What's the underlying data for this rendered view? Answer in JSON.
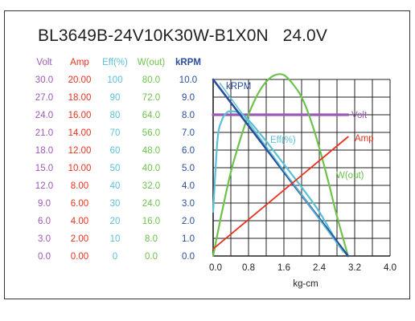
{
  "title": "BL3649B-24V10K30W-B1X0N   24.0V",
  "colors": {
    "volt": "#9b59b6",
    "amp": "#e8321e",
    "eff": "#5bc0d6",
    "wout": "#6cc24a",
    "krpm": "#2a4d9c",
    "grid": "#222222"
  },
  "chart_data": {
    "type": "line",
    "title": "BL3649B-24V10K30W-B1X0N   24.0V",
    "xlabel": "kg-cm",
    "xlim": [
      0.0,
      4.0
    ],
    "x_ticks": [
      "0.0",
      "0.8",
      "1.6",
      "2.4",
      "3.2",
      "4.0"
    ],
    "y_axes": [
      {
        "name": "Volt",
        "ticks": [
          "30.0",
          "27.0",
          "24.0",
          "21.0",
          "18.0",
          "15.0",
          "12.0",
          "9.0",
          "6.0",
          "3.0",
          "0.0"
        ],
        "range": [
          0,
          30
        ]
      },
      {
        "name": "Amp",
        "ticks": [
          "20.00",
          "18.00",
          "16.00",
          "14.00",
          "12.00",
          "10.00",
          "8.00",
          "6.00",
          "4.00",
          "2.00",
          "0.00"
        ],
        "range": [
          0,
          20
        ]
      },
      {
        "name": "Eff(%)",
        "ticks": [
          "100",
          "90",
          "80",
          "70",
          "60",
          "50",
          "40",
          "30",
          "20",
          "10",
          "0"
        ],
        "range": [
          0,
          100
        ]
      },
      {
        "name": "W(out)",
        "ticks": [
          "80.0",
          "72.0",
          "64.0",
          "56.0",
          "48.0",
          "40.0",
          "32.0",
          "24.0",
          "16.0",
          "8.0",
          "0.0"
        ],
        "range": [
          0,
          80
        ]
      },
      {
        "name": "kRPM",
        "ticks": [
          "10.0",
          "9.0",
          "8.0",
          "7.0",
          "6.0",
          "5.0",
          "4.0",
          "3.0",
          "2.0",
          "1.0",
          "0.0"
        ],
        "range": [
          0,
          10
        ]
      }
    ],
    "series": [
      {
        "name": "Volt",
        "axis": "Volt",
        "label": "Volt",
        "x": [
          0.0,
          3.05
        ],
        "y": [
          24.0,
          24.0
        ]
      },
      {
        "name": "Amp",
        "axis": "Amp",
        "label": "Amp",
        "x": [
          0.0,
          3.05
        ],
        "y": [
          0.8,
          13.5
        ]
      },
      {
        "name": "kRPM",
        "axis": "kRPM",
        "label": "kRPM",
        "x": [
          0.0,
          3.05
        ],
        "y": [
          10.0,
          0.0
        ]
      },
      {
        "name": "Eff(%)",
        "axis": "Eff(%)",
        "label": "Eff(%)",
        "x": [
          0.0,
          0.1,
          0.2,
          0.3,
          0.4,
          0.6,
          0.8,
          1.2,
          1.6,
          2.0,
          2.4,
          2.8,
          3.05
        ],
        "y": [
          25,
          66,
          77,
          81,
          82,
          81,
          77,
          65,
          52,
          39,
          25,
          8,
          0
        ]
      },
      {
        "name": "W(out)",
        "axis": "W(out)",
        "label": "W(out)",
        "x": [
          0.0,
          0.2,
          0.4,
          0.6,
          0.8,
          1.0,
          1.2,
          1.4,
          1.6,
          1.8,
          2.0,
          2.2,
          2.4,
          2.6,
          2.8,
          3.05
        ],
        "y": [
          0,
          20,
          38,
          52,
          64,
          73,
          79,
          82,
          82,
          78,
          72,
          62,
          49,
          34,
          18,
          0
        ]
      }
    ],
    "grid": true,
    "legend": "inline labels"
  }
}
